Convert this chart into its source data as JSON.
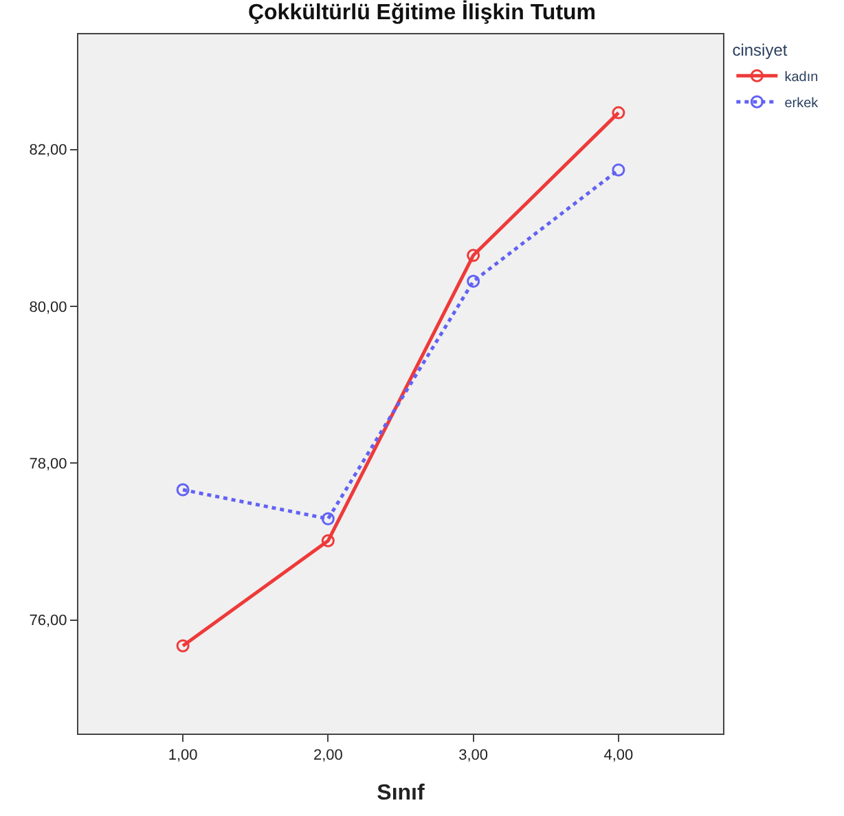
{
  "chart_data": {
    "type": "line",
    "title": "Çokkültürlü Eğitime İlişkin Tutum",
    "xlabel": "Sınıf",
    "legend_title": "cinsiyet",
    "categories": [
      "1,00",
      "2,00",
      "3,00",
      "4,00"
    ],
    "series": [
      {
        "name": "kadın",
        "color": "#ee3a3a",
        "line_style": "solid",
        "values": [
          75.67,
          77.01,
          80.65,
          82.47
        ]
      },
      {
        "name": "erkek",
        "color": "#6262f5",
        "line_style": "dotted",
        "values": [
          77.66,
          77.29,
          80.32,
          81.74
        ]
      }
    ],
    "ylim": [
      74.55,
      83.47
    ],
    "yticks": [
      {
        "value": 76,
        "label": "76,00"
      },
      {
        "value": 78,
        "label": "78,00"
      },
      {
        "value": 80,
        "label": "80,00"
      },
      {
        "value": 82,
        "label": "82,00"
      }
    ],
    "marker": "circle",
    "grid": false,
    "legend": "right"
  }
}
